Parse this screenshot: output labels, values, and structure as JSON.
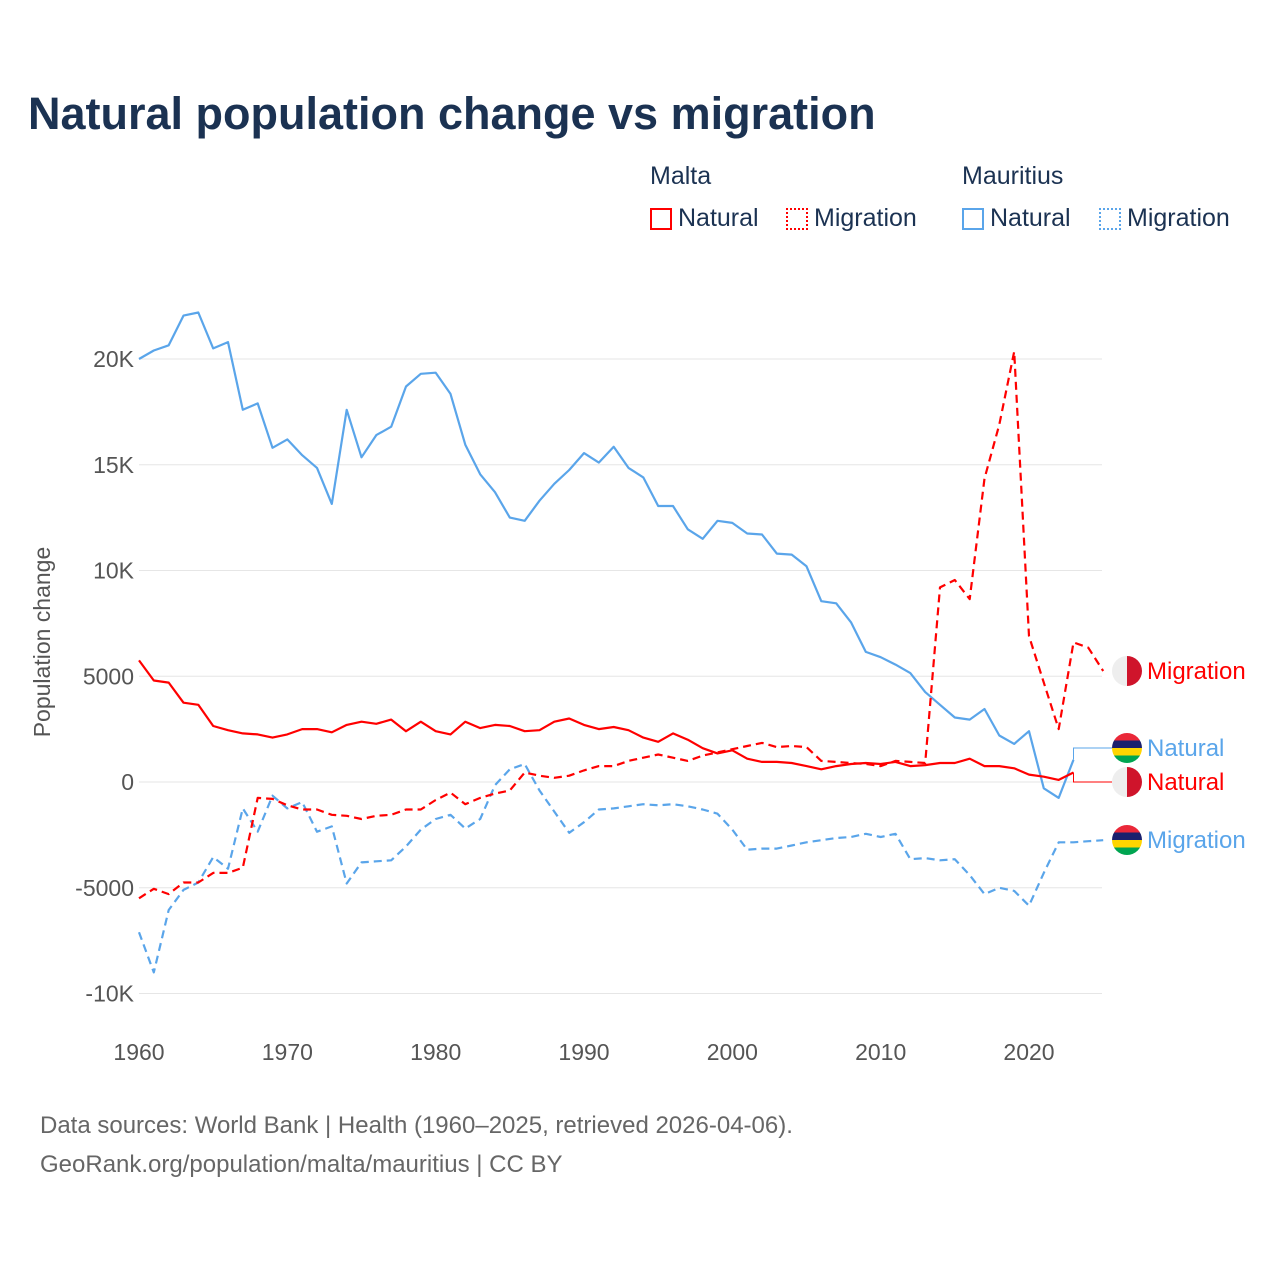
{
  "title": "Natural population change vs migration",
  "legend": {
    "groups": [
      {
        "name": "Malta",
        "color": "#ff0000",
        "items": [
          "Natural",
          "Migration"
        ]
      },
      {
        "name": "Mauritius",
        "color": "#5aa5ea",
        "items": [
          "Natural",
          "Migration"
        ]
      }
    ]
  },
  "footer": {
    "line1": "Data sources: World Bank | Health (1960–2025, retrieved 2026-04-06).",
    "line2": "GeoRank.org/population/malta/mauritius | CC BY"
  },
  "chart_data": {
    "type": "line",
    "title": "Natural population change vs migration",
    "xlabel": "",
    "ylabel": "Population change",
    "xlim": [
      1960,
      2025
    ],
    "ylim": [
      -10000,
      20000
    ],
    "x_ticks": [
      1960,
      1970,
      1980,
      1990,
      2000,
      2010,
      2020
    ],
    "x_tick_labels": [
      "1960",
      "1970",
      "1980",
      "1990",
      "2000",
      "2010",
      "2020"
    ],
    "y_ticks": [
      -10000,
      -5000,
      0,
      5000,
      10000,
      15000,
      20000
    ],
    "y_tick_labels": [
      "-10K",
      "-5000",
      "0",
      "5000",
      "10K",
      "15K",
      "20K"
    ],
    "grid": true,
    "legend_position": "top-right",
    "series": [
      {
        "name": "Mauritius Natural",
        "country": "Mauritius",
        "label": "Natural",
        "color": "#5aa5ea",
        "dash": "solid",
        "start": 1960,
        "values": [
          20000,
          20400,
          20650,
          22050,
          22200,
          20500,
          20800,
          17600,
          17900,
          15800,
          16200,
          15450,
          14850,
          13150,
          17600,
          15350,
          16400,
          16800,
          18700,
          19300,
          19350,
          18350,
          15950,
          14550,
          13700,
          12500,
          12350,
          13300,
          14100,
          14750,
          15550,
          15100,
          15850,
          14850,
          14400,
          13050,
          13050,
          11950,
          11500,
          12350,
          12250,
          11750,
          11700,
          10800,
          10750,
          10200,
          8550,
          8450,
          7550,
          6150,
          5900,
          5550,
          5150,
          4250,
          3650,
          3050,
          2950,
          3450,
          2200,
          1800,
          2400,
          -300,
          -750,
          1050
        ]
      },
      {
        "name": "Mauritius Migration",
        "country": "Mauritius",
        "label": "Migration",
        "color": "#5aa5ea",
        "dash": "dashed",
        "start": 1960,
        "values": [
          -7100,
          -9000,
          -6050,
          -5100,
          -4750,
          -3550,
          -4100,
          -1250,
          -2350,
          -650,
          -1250,
          -950,
          -2350,
          -2100,
          -4800,
          -3800,
          -3750,
          -3700,
          -3050,
          -2250,
          -1750,
          -1550,
          -2200,
          -1750,
          -150,
          600,
          850,
          -400,
          -1400,
          -2400,
          -1900,
          -1300,
          -1250,
          -1150,
          -1050,
          -1100,
          -1050,
          -1150,
          -1300,
          -1500,
          -2250,
          -3200,
          -3150,
          -3150,
          -3000,
          -2850,
          -2750,
          -2650,
          -2600,
          -2450,
          -2600,
          -2450,
          -3650,
          -3600,
          -3700,
          -3650,
          -4400,
          -5300,
          -5000,
          -5150,
          -5850,
          -4300,
          -2850,
          -2850,
          -2800,
          -2750
        ]
      },
      {
        "name": "Malta Natural",
        "country": "Malta",
        "label": "Natural",
        "color": "#ff0000",
        "dash": "solid",
        "start": 1960,
        "values": [
          5750,
          4800,
          4700,
          3750,
          3650,
          2650,
          2450,
          2300,
          2250,
          2100,
          2250,
          2500,
          2500,
          2350,
          2700,
          2850,
          2750,
          2950,
          2400,
          2850,
          2400,
          2250,
          2850,
          2550,
          2700,
          2650,
          2400,
          2450,
          2850,
          3000,
          2700,
          2500,
          2600,
          2450,
          2100,
          1900,
          2300,
          2000,
          1600,
          1350,
          1500,
          1100,
          950,
          950,
          900,
          750,
          600,
          750,
          850,
          900,
          850,
          950,
          750,
          800,
          900,
          900,
          1100,
          750,
          750,
          650,
          350,
          250,
          100,
          450
        ]
      },
      {
        "name": "Malta Migration",
        "country": "Malta",
        "label": "Migration",
        "color": "#ff0000",
        "dash": "dashed",
        "start": 1960,
        "values": [
          -5500,
          -5050,
          -5300,
          -4750,
          -4750,
          -4300,
          -4300,
          -4050,
          -750,
          -800,
          -1100,
          -1300,
          -1300,
          -1550,
          -1600,
          -1750,
          -1600,
          -1550,
          -1300,
          -1300,
          -850,
          -500,
          -1050,
          -750,
          -550,
          -400,
          450,
          300,
          200,
          300,
          550,
          750,
          750,
          1000,
          1150,
          1300,
          1150,
          1000,
          1250,
          1400,
          1550,
          1700,
          1850,
          1650,
          1700,
          1650,
          1000,
          950,
          900,
          850,
          750,
          1000,
          950,
          900,
          9200,
          9550,
          8650,
          14350,
          16900,
          20350,
          6900,
          4700,
          2500,
          6600,
          6350,
          5250
        ]
      }
    ]
  }
}
